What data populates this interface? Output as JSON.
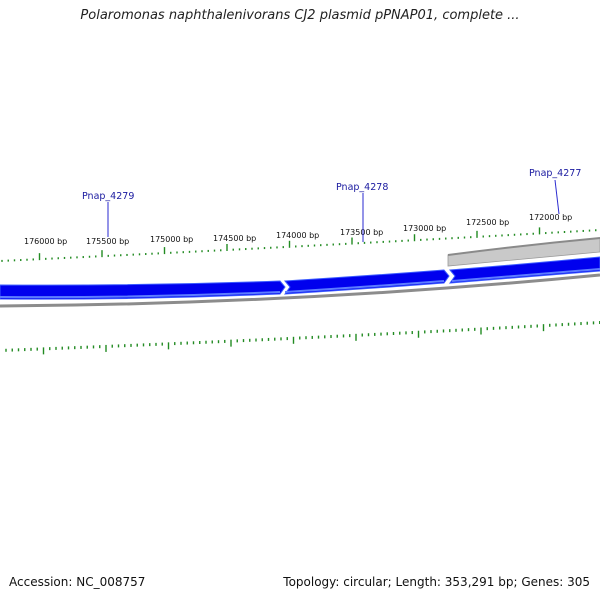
{
  "title": "Polaromonas naphthalenivorans CJ2 plasmid pPNAP01, complete ...",
  "footer": {
    "accession": "Accession: NC_008757",
    "summary": "Topology: circular; Length: 353,291 bp; Genes: 305"
  },
  "colors": {
    "gene_forward": "#0000ee",
    "gene_highlight": "#4a6cff",
    "backbone": "#8c8c8c",
    "gray_feature": "#c8c8c8",
    "tick": "#228b22",
    "gene_label": "#1a1aa0"
  },
  "scale": {
    "labels": [
      "176000 bp",
      "175500 bp",
      "175000 bp",
      "174500 bp",
      "174000 bp",
      "173500 bp",
      "173000 bp",
      "172500 bp",
      "172000 bp"
    ]
  },
  "genes": [
    {
      "name": "Pnap_4279"
    },
    {
      "name": "Pnap_4278"
    },
    {
      "name": "Pnap_4277"
    }
  ]
}
